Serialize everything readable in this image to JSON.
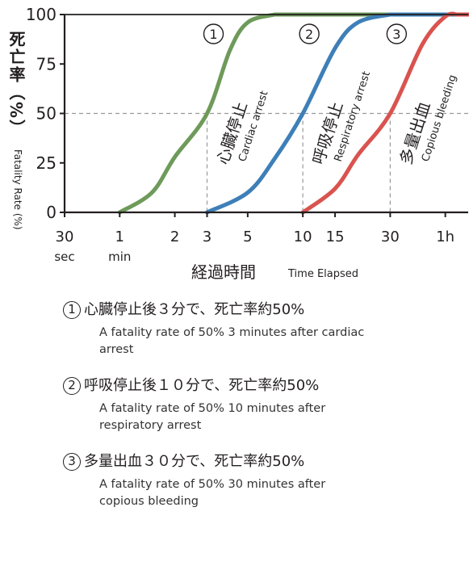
{
  "chart_data": {
    "type": "line",
    "ylabel": "死亡率（%）",
    "ylabel_en": "Fatality Rate (%)",
    "xlabel": "経過時間",
    "xlabel_en": "Time Elapsed",
    "x_scale": "log",
    "x_unit": "minutes",
    "xlim": [
      0.5,
      80
    ],
    "ylim": [
      0,
      100
    ],
    "y_ticks": [
      0,
      25,
      50,
      75,
      100
    ],
    "x_ticks": [
      {
        "value": 0.5,
        "label": "30",
        "sub": "sec"
      },
      {
        "value": 1,
        "label": "1",
        "sub": "min"
      },
      {
        "value": 2,
        "label": "2",
        "sub": ""
      },
      {
        "value": 3,
        "label": "3",
        "sub": ""
      },
      {
        "value": 5,
        "label": "5",
        "sub": ""
      },
      {
        "value": 10,
        "label": "10",
        "sub": ""
      },
      {
        "value": 15,
        "label": "15",
        "sub": ""
      },
      {
        "value": 30,
        "label": "30",
        "sub": ""
      },
      {
        "value": 60,
        "label": "1h",
        "sub": ""
      }
    ],
    "reference_line_y": 50,
    "grid": false,
    "series": [
      {
        "marker": "①",
        "name": "心臓停止",
        "name_en": "Cardiac arrest",
        "color": "#6e9a5a",
        "x": [
          1,
          1.5,
          2,
          3,
          4,
          5,
          7
        ],
        "y": [
          0,
          10,
          28,
          50,
          82,
          96,
          100
        ]
      },
      {
        "marker": "②",
        "name": "呼吸停止",
        "name_en": "Respiratory arrest",
        "color": "#3e7fb8",
        "x": [
          3,
          5,
          7,
          10,
          15,
          20,
          30
        ],
        "y": [
          0,
          10,
          27,
          50,
          83,
          96,
          100
        ]
      },
      {
        "marker": "③",
        "name": "多量出血",
        "name_en": "Copious bleeding",
        "color": "#d9534f",
        "x": [
          10,
          15,
          20,
          30,
          45,
          60,
          70
        ],
        "y": [
          0,
          12,
          29,
          50,
          85,
          99,
          100
        ]
      }
    ]
  },
  "notes": [
    {
      "num": "1",
      "title": "心臓停止後３分で、死亡率約50%",
      "desc": "A fatality rate of 50% 3 minutes after cardiac arrest"
    },
    {
      "num": "2",
      "title": "呼吸停止後１０分で、死亡率約50%",
      "desc": "A fatality rate of 50% 10 minutes after respiratory arrest"
    },
    {
      "num": "3",
      "title": "多量出血３０分で、死亡率約50%",
      "desc": "A fatality rate of 50% 30 minutes after copious bleeding"
    }
  ]
}
